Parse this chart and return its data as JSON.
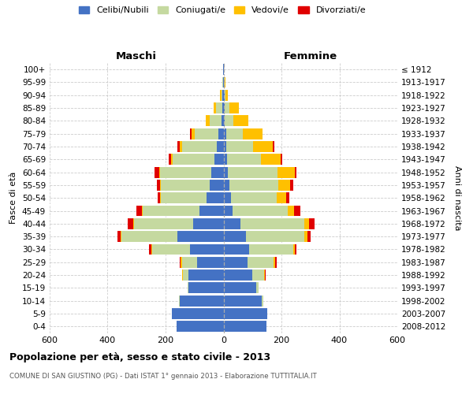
{
  "age_groups": [
    "0-4",
    "5-9",
    "10-14",
    "15-19",
    "20-24",
    "25-29",
    "30-34",
    "35-39",
    "40-44",
    "45-49",
    "50-54",
    "55-59",
    "60-64",
    "65-69",
    "70-74",
    "75-79",
    "80-84",
    "85-89",
    "90-94",
    "95-99",
    "100+"
  ],
  "birth_years": [
    "2008-2012",
    "2003-2007",
    "1998-2002",
    "1993-1997",
    "1988-1992",
    "1983-1987",
    "1978-1982",
    "1973-1977",
    "1968-1972",
    "1963-1967",
    "1958-1962",
    "1953-1957",
    "1948-1952",
    "1943-1947",
    "1938-1942",
    "1933-1937",
    "1928-1932",
    "1923-1927",
    "1918-1922",
    "1913-1917",
    "≤ 1912"
  ],
  "males_celibe": [
    162,
    178,
    150,
    120,
    120,
    90,
    115,
    160,
    105,
    82,
    58,
    48,
    42,
    30,
    22,
    18,
    8,
    5,
    3,
    2,
    1
  ],
  "males_coniugato": [
    0,
    0,
    5,
    5,
    20,
    52,
    132,
    192,
    205,
    198,
    158,
    168,
    178,
    145,
    120,
    80,
    40,
    20,
    5,
    2,
    0
  ],
  "males_vedovo": [
    0,
    0,
    0,
    0,
    2,
    5,
    2,
    2,
    2,
    2,
    2,
    2,
    3,
    5,
    8,
    12,
    12,
    8,
    3,
    1,
    0
  ],
  "males_divorziato": [
    0,
    0,
    0,
    0,
    2,
    3,
    8,
    12,
    18,
    18,
    10,
    12,
    15,
    10,
    8,
    5,
    0,
    0,
    0,
    0,
    0
  ],
  "females_nubile": [
    148,
    152,
    132,
    112,
    100,
    82,
    88,
    78,
    58,
    30,
    25,
    20,
    15,
    12,
    10,
    10,
    5,
    5,
    3,
    2,
    1
  ],
  "females_coniugata": [
    0,
    0,
    5,
    10,
    40,
    92,
    152,
    202,
    222,
    192,
    158,
    168,
    172,
    118,
    92,
    58,
    28,
    15,
    5,
    2,
    0
  ],
  "females_vedova": [
    0,
    0,
    0,
    0,
    2,
    5,
    5,
    10,
    15,
    22,
    32,
    42,
    58,
    68,
    68,
    68,
    52,
    32,
    8,
    2,
    0
  ],
  "females_divorziata": [
    0,
    0,
    0,
    0,
    3,
    5,
    8,
    10,
    18,
    20,
    12,
    10,
    8,
    5,
    5,
    0,
    0,
    0,
    0,
    0,
    0
  ],
  "colors": {
    "celibe": "#4472c4",
    "coniugato": "#c5d9a0",
    "vedovo": "#ffc000",
    "divorziato": "#e00000"
  },
  "legend_labels": [
    "Celibi/Nubili",
    "Coniugati/e",
    "Vedovi/e",
    "Divorziati/e"
  ],
  "title": "Popolazione per età, sesso e stato civile - 2013",
  "subtitle": "COMUNE DI SAN GIUSTINO (PG) - Dati ISTAT 1° gennaio 2013 - Elaborazione TUTTITALIA.IT",
  "label_maschi": "Maschi",
  "label_femmine": "Femmine",
  "ylabel_left": "Fasce di età",
  "ylabel_right": "Anni di nascita",
  "xlim": 600,
  "bg_color": "#ffffff",
  "grid_color": "#cccccc"
}
